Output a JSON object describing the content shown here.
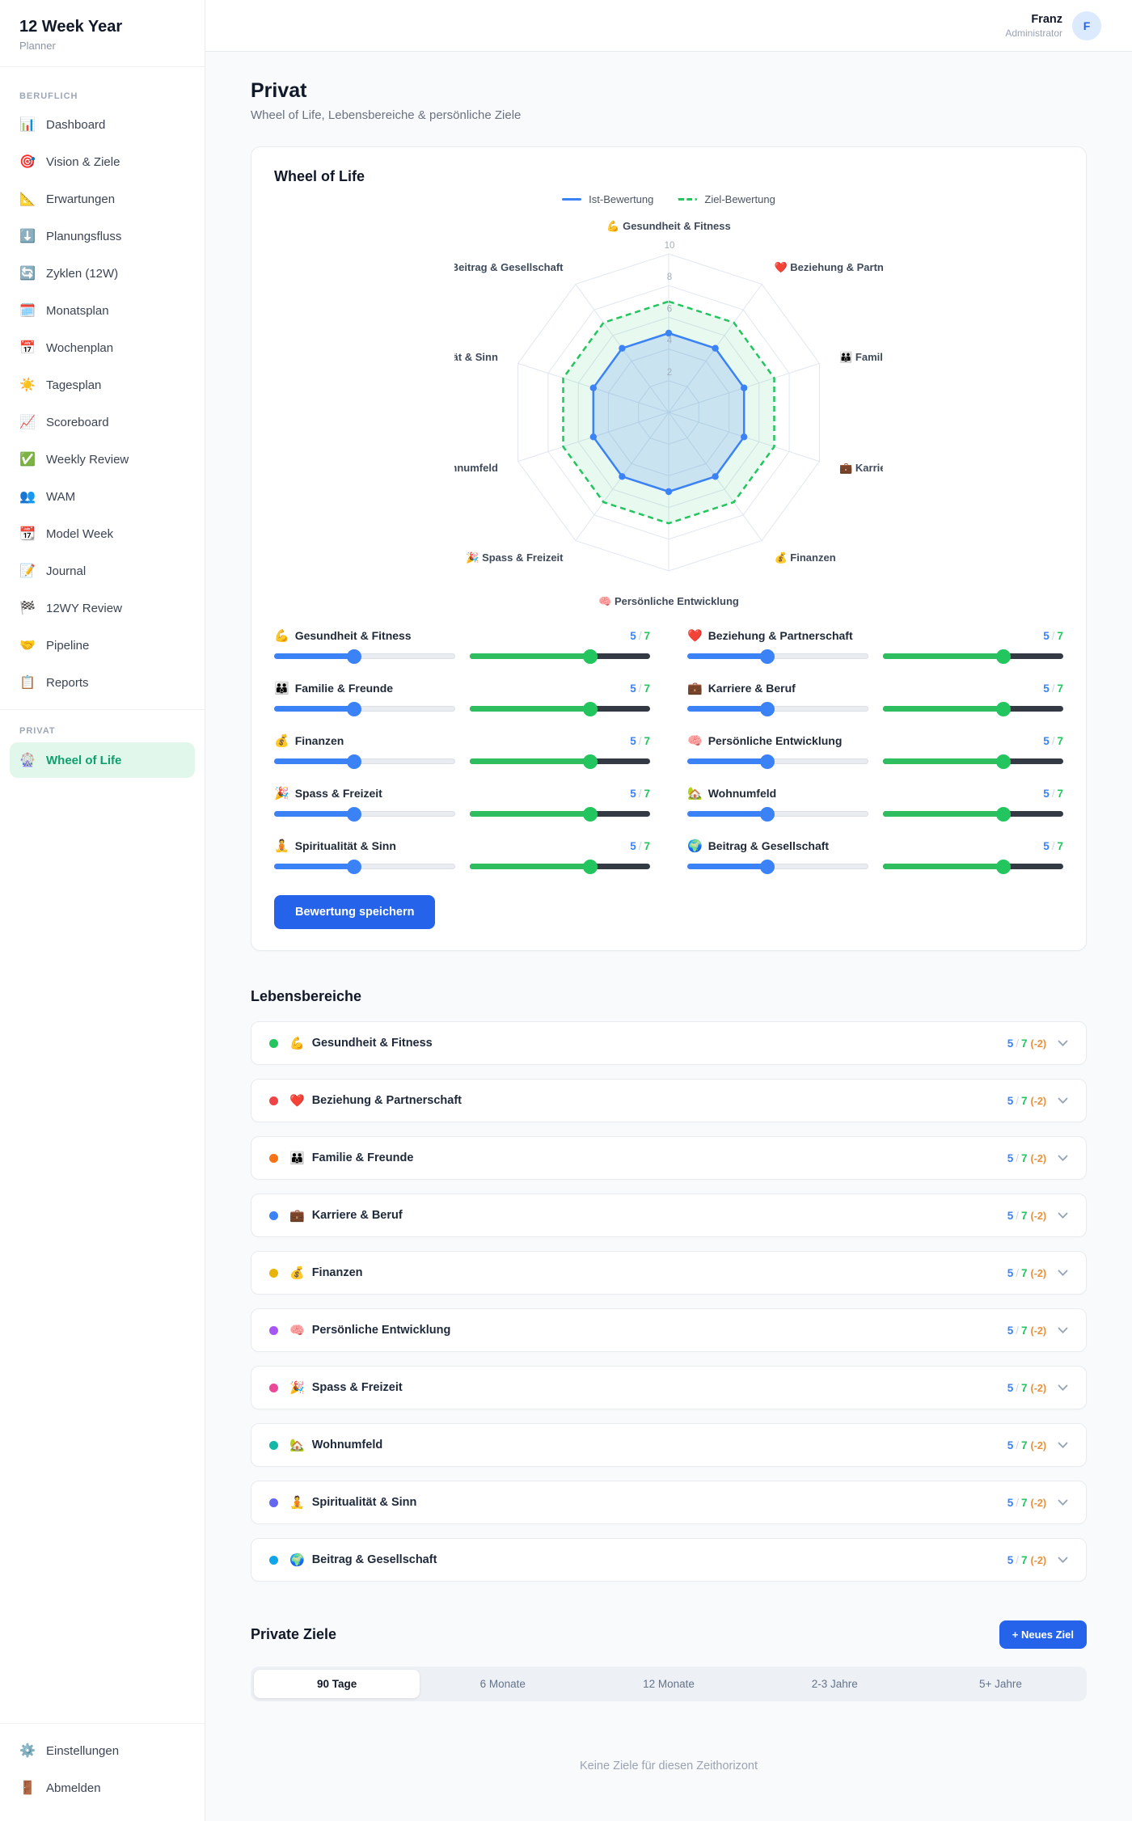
{
  "sidebar": {
    "app_title": "12 Week Year",
    "app_subtitle": "Planner",
    "sections": [
      {
        "label": "BERUFLICH",
        "items": [
          {
            "icon": "📊",
            "label": "Dashboard"
          },
          {
            "icon": "🎯",
            "label": "Vision & Ziele"
          },
          {
            "icon": "📐",
            "label": "Erwartungen"
          },
          {
            "icon": "⬇️",
            "label": "Planungsfluss"
          },
          {
            "icon": "🔄",
            "label": "Zyklen (12W)"
          },
          {
            "icon": "🗓️",
            "label": "Monatsplan"
          },
          {
            "icon": "📅",
            "label": "Wochenplan"
          },
          {
            "icon": "☀️",
            "label": "Tagesplan"
          },
          {
            "icon": "📈",
            "label": "Scoreboard"
          },
          {
            "icon": "✅",
            "label": "Weekly Review"
          },
          {
            "icon": "👥",
            "label": "WAM"
          },
          {
            "icon": "📆",
            "label": "Model Week"
          },
          {
            "icon": "📝",
            "label": "Journal"
          },
          {
            "icon": "🏁",
            "label": "12WY Review"
          },
          {
            "icon": "🤝",
            "label": "Pipeline"
          },
          {
            "icon": "📋",
            "label": "Reports"
          }
        ]
      },
      {
        "label": "PRIVAT",
        "items": [
          {
            "icon": "🎡",
            "label": "Wheel of Life",
            "active": true
          }
        ]
      }
    ],
    "footer_items": [
      {
        "icon": "⚙️",
        "label": "Einstellungen"
      },
      {
        "icon": "🚪",
        "label": "Abmelden"
      }
    ]
  },
  "header": {
    "user_name": "Franz",
    "user_role": "Administrator",
    "avatar_initial": "F"
  },
  "page": {
    "title": "Privat",
    "subtitle": "Wheel of Life, Lebensbereiche & persönliche Ziele"
  },
  "wheel_card": {
    "title": "Wheel of Life",
    "save_button": "Bewertung speichern"
  },
  "chart_data": {
    "type": "radar",
    "categories": [
      "💪 Gesundheit & Fitness",
      "❤️ Beziehung & Partnerschaft",
      "👪 Familie & Freunde",
      "💼 Karriere & Beruf",
      "💰 Finanzen",
      "🧠 Persönliche Entwicklung",
      "🎉 Spass & Freizeit",
      "🏡 Wohnumfeld",
      "🧘 Spiritualität & Sinn",
      "🌍 Beitrag & Gesellschaft"
    ],
    "series": [
      {
        "name": "Ist-Bewertung",
        "values": [
          5,
          5,
          5,
          5,
          5,
          5,
          5,
          5,
          5,
          5
        ],
        "color": "#3b82f6",
        "fill": "rgba(59,130,246,0.18)",
        "dashed": false,
        "dots": true
      },
      {
        "name": "Ziel-Bewertung",
        "values": [
          7,
          7,
          7,
          7,
          7,
          7,
          7,
          7,
          7,
          7
        ],
        "color": "#22c55e",
        "fill": "rgba(34,197,94,0.10)",
        "dashed": true,
        "dots": false
      }
    ],
    "ticks": [
      2,
      4,
      6,
      8,
      10
    ],
    "max": 10,
    "grid": true,
    "legend_position": "top"
  },
  "areas": [
    {
      "emoji": "💪",
      "name": "Gesundheit & Fitness",
      "ist": 5,
      "ziel": 7,
      "diff": "(-2)",
      "dot": "#22c55e"
    },
    {
      "emoji": "❤️",
      "name": "Beziehung & Partnerschaft",
      "ist": 5,
      "ziel": 7,
      "diff": "(-2)",
      "dot": "#ef4444"
    },
    {
      "emoji": "👪",
      "name": "Familie & Freunde",
      "ist": 5,
      "ziel": 7,
      "diff": "(-2)",
      "dot": "#f97316"
    },
    {
      "emoji": "💼",
      "name": "Karriere & Beruf",
      "ist": 5,
      "ziel": 7,
      "diff": "(-2)",
      "dot": "#3b82f6"
    },
    {
      "emoji": "💰",
      "name": "Finanzen",
      "ist": 5,
      "ziel": 7,
      "diff": "(-2)",
      "dot": "#eab308"
    },
    {
      "emoji": "🧠",
      "name": "Persönliche Entwicklung",
      "ist": 5,
      "ziel": 7,
      "diff": "(-2)",
      "dot": "#a855f7"
    },
    {
      "emoji": "🎉",
      "name": "Spass & Freizeit",
      "ist": 5,
      "ziel": 7,
      "diff": "(-2)",
      "dot": "#ec4899"
    },
    {
      "emoji": "🏡",
      "name": "Wohnumfeld",
      "ist": 5,
      "ziel": 7,
      "diff": "(-2)",
      "dot": "#14b8a6"
    },
    {
      "emoji": "🧘",
      "name": "Spiritualität & Sinn",
      "ist": 5,
      "ziel": 7,
      "diff": "(-2)",
      "dot": "#6366f1"
    },
    {
      "emoji": "🌍",
      "name": "Beitrag & Gesellschaft",
      "ist": 5,
      "ziel": 7,
      "diff": "(-2)",
      "dot": "#0ea5e9"
    }
  ],
  "slider_scale": {
    "min": 1,
    "max": 10
  },
  "lebensbereiche": {
    "heading": "Lebensbereiche"
  },
  "private_ziele": {
    "heading": "Private Ziele",
    "new_button": "+ Neues Ziel",
    "tabs": [
      "90 Tage",
      "6 Monate",
      "12 Monate",
      "2-3 Jahre",
      "5+ Jahre"
    ],
    "active_tab": "90 Tage",
    "empty_text": "Keine Ziele für diesen Zeithorizont"
  }
}
